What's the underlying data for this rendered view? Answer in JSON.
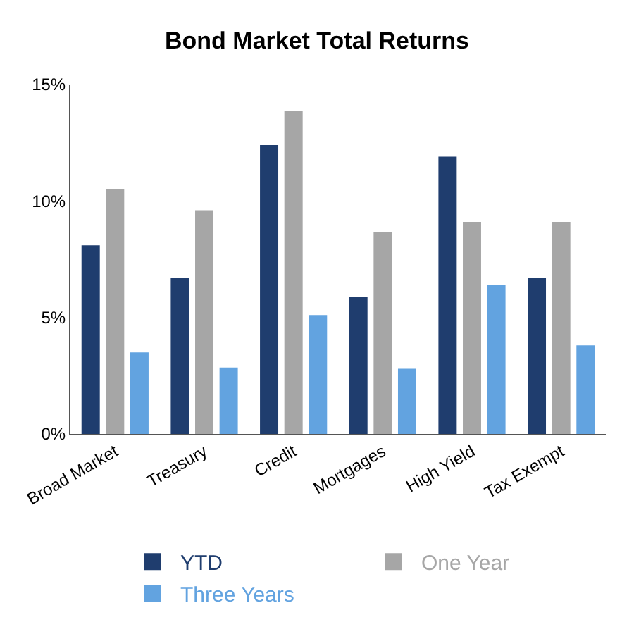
{
  "chart_data": {
    "type": "bar",
    "title": "Bond Market Total Returns",
    "categories": [
      "Broad Market",
      "Treasury",
      "Credit",
      "Mortgages",
      "High Yield",
      "Tax Exempt"
    ],
    "series": [
      {
        "name": "YTD",
        "color": "#1f3d6e",
        "values": [
          8.1,
          6.7,
          12.4,
          5.9,
          11.9,
          6.7
        ]
      },
      {
        "name": "One Year",
        "color": "#a6a6a6",
        "values": [
          10.5,
          9.6,
          13.85,
          8.65,
          9.1,
          9.1
        ]
      },
      {
        "name": "Three Years",
        "color": "#62a3e0",
        "values": [
          3.5,
          2.85,
          5.1,
          2.8,
          6.4,
          3.8
        ]
      }
    ],
    "ylim": [
      0,
      15
    ],
    "yticks": [
      {
        "value": 0,
        "label": "0%"
      },
      {
        "value": 5,
        "label": "5%"
      },
      {
        "value": 10,
        "label": "10%"
      },
      {
        "value": 15,
        "label": "15%"
      }
    ],
    "legend": "bottom"
  }
}
